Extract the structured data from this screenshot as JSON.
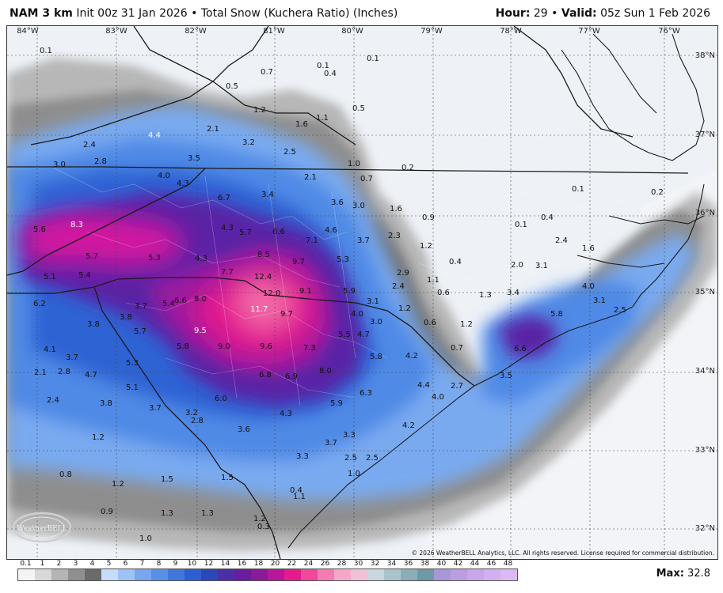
{
  "header": {
    "model": "NAM 3 km",
    "init": "Init 00z 31 Jan 2026",
    "separator": "•",
    "product": "Total Snow (Kuchera Ratio) (Inches)",
    "hour_label": "Hour:",
    "hour_value": "29",
    "valid_label": "Valid:",
    "valid_value": "05z Sun 1 Feb 2026"
  },
  "map": {
    "region": "Virginia / North Carolina / South Carolina",
    "longitudes": [
      "84°W",
      "83°W",
      "82°W",
      "81°W",
      "80°W",
      "79°W",
      "78°W",
      "77°W",
      "76°W"
    ],
    "latitudes": [
      "38°N",
      "37°N",
      "36°N",
      "35°N",
      "34°N",
      "33°N",
      "32°N"
    ],
    "snow_labels": [
      "0.1",
      "0.7",
      "0.1",
      "0.1",
      "0.4",
      "0.5",
      "0.5",
      "1.2",
      "1.6",
      "1.1",
      "2.1",
      "4.4",
      "3.2",
      "2.5",
      "2.4",
      "2.8",
      "3.0",
      "3.5",
      "1.0",
      "0.2",
      "4.0",
      "4.3",
      "2.1",
      "0.7",
      "6.7",
      "3.4",
      "0.1",
      "0.2",
      "3.6",
      "3.0",
      "1.6",
      "0.9",
      "0.4",
      "8.3",
      "4.3",
      "5.7",
      "6.6",
      "4.6",
      "2.3",
      "0.1",
      "2.4",
      "1.6",
      "5.6",
      "7.1",
      "3.7",
      "1.2",
      "5.7",
      "5.3",
      "4.3",
      "8.5",
      "9.7",
      "5.3",
      "0.4",
      "5.1",
      "5.4",
      "7.7",
      "12.4",
      "2.9",
      "2.0",
      "3.1",
      "12.0",
      "9.1",
      "5.9",
      "1.1",
      "1.3",
      "3.4",
      "4.0",
      "6.2",
      "5.4",
      "6.6",
      "8.0",
      "3.1",
      "2.4",
      "1.2",
      "0.6",
      "3.1",
      "11.7",
      "3.8",
      "3.7",
      "9.7",
      "4.0",
      "3.0",
      "0.6",
      "1.2",
      "5.8",
      "2.5",
      "3.8",
      "5.7",
      "9.5",
      "5.5",
      "4.7",
      "4.2",
      "5.8",
      "9.0",
      "9.6",
      "7.3",
      "0.7",
      "6.6",
      "3.7",
      "5.3",
      "5.8",
      "4.1",
      "2.8",
      "2.1",
      "4.7",
      "8.0",
      "6.8",
      "6.9",
      "5.1",
      "3.5",
      "4.4",
      "2.7",
      "6.3",
      "2.4",
      "6.0",
      "4.0",
      "3.8",
      "3.7",
      "3.2",
      "5.9",
      "4.3",
      "2.8",
      "4.2",
      "1.2",
      "3.6",
      "3.7",
      "3.3",
      "3.3",
      "2.5",
      "2.5",
      "1.0",
      "0.8",
      "1.2",
      "1.5",
      "1.5",
      "0.4",
      "0.9",
      "1.3",
      "1.3",
      "1.1",
      "1.2",
      "0.3",
      "1.0"
    ],
    "copyright": "© 2026 WeatherBELL Analytics, LLC. All rights reserved. License required for commercial distribution.",
    "logo_text": "WeatherBELL"
  },
  "legend": {
    "ticks": [
      "0.1",
      "1",
      "2",
      "3",
      "4",
      "5",
      "6",
      "7",
      "8",
      "9",
      "10",
      "12",
      "14",
      "16",
      "18",
      "20",
      "22",
      "24",
      "26",
      "28",
      "30",
      "32",
      "34",
      "36",
      "38",
      "40",
      "42",
      "44",
      "46",
      "48"
    ],
    "colors": [
      "#f4f4f4",
      "#d8d8d8",
      "#b4b4b4",
      "#8f8f8f",
      "#6a6a6a",
      "#c6dcfa",
      "#9fc2f4",
      "#78a7ee",
      "#5a8fe6",
      "#3f77dd",
      "#2d5fd0",
      "#2b48b8",
      "#4a2fa8",
      "#6a1d9e",
      "#8b1a98",
      "#b8179a",
      "#e51a8f",
      "#f0489a",
      "#f27bb2",
      "#f6a7c9",
      "#f0c1d6",
      "#c9d7de",
      "#a9c3cc",
      "#8aadb8",
      "#6e9aa7",
      "#a897d8",
      "#bb9ee2",
      "#c8a6e9",
      "#d2b0ef",
      "#dbbaf3"
    ],
    "max_label": "Max:",
    "max_value": "32.8"
  }
}
